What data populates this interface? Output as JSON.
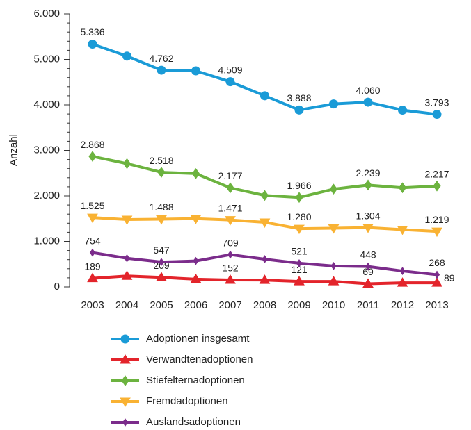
{
  "chart_data": {
    "type": "line",
    "y_label": "Anzahl",
    "categories": [
      "2003",
      "2004",
      "2005",
      "2006",
      "2007",
      "2008",
      "2009",
      "2010",
      "2011",
      "2012",
      "2013"
    ],
    "ylim": [
      0,
      6000
    ],
    "yticks": [
      {
        "value": 0,
        "label": "0"
      },
      {
        "value": 1000,
        "label": "1.000"
      },
      {
        "value": 2000,
        "label": "2.000"
      },
      {
        "value": 3000,
        "label": "3.000"
      },
      {
        "value": 4000,
        "label": "4.000"
      },
      {
        "value": 5000,
        "label": "5.000"
      },
      {
        "value": 6000,
        "label": "6.000"
      }
    ],
    "series": [
      {
        "name": "Adoptionen insgesamt",
        "color": "#1a9bd7",
        "marker": "circle",
        "values": [
          5336,
          5072,
          4762,
          4748,
          4509,
          4201,
          3888,
          4021,
          4060,
          3886,
          3793
        ],
        "value_labels": [
          "5.336",
          null,
          "4.762",
          null,
          "4.509",
          null,
          "3.888",
          null,
          "4.060",
          null,
          "3.793"
        ]
      },
      {
        "name": "Verwandtenadoptionen",
        "color": "#e3242b",
        "marker": "triangle-up",
        "values": [
          189,
          240,
          209,
          170,
          152,
          150,
          121,
          120,
          69,
          90,
          89
        ],
        "value_labels": [
          "189",
          null,
          "209",
          null,
          "152",
          null,
          "121",
          null,
          "69",
          null,
          "89"
        ]
      },
      {
        "name": "Stiefelternadoptionen",
        "color": "#6cb33f",
        "marker": "diamond",
        "values": [
          2868,
          2710,
          2518,
          2490,
          2177,
          2010,
          1966,
          2150,
          2239,
          2180,
          2217
        ],
        "value_labels": [
          "2.868",
          null,
          "2.518",
          null,
          "2.177",
          null,
          "1.966",
          null,
          "2.239",
          null,
          "2.217"
        ]
      },
      {
        "name": "Fremdadoptionen",
        "color": "#f9b233",
        "marker": "triangle-down",
        "values": [
          1525,
          1480,
          1488,
          1500,
          1471,
          1420,
          1280,
          1290,
          1304,
          1260,
          1219
        ],
        "value_labels": [
          "1.525",
          null,
          "1.488",
          null,
          "1.471",
          null,
          "1.280",
          null,
          "1.304",
          null,
          "1.219"
        ]
      },
      {
        "name": "Auslandsadoptionen",
        "color": "#7b2c8b",
        "marker": "small-diamond",
        "values": [
          754,
          630,
          547,
          570,
          709,
          610,
          521,
          460,
          448,
          350,
          268
        ],
        "value_labels": [
          "754",
          null,
          "547",
          null,
          "709",
          null,
          "521",
          null,
          "448",
          null,
          "268"
        ]
      }
    ]
  }
}
